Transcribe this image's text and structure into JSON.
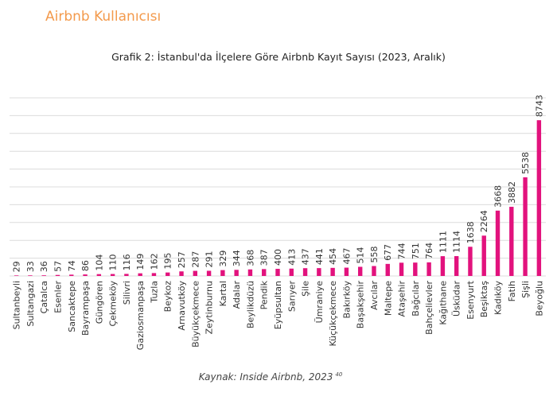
{
  "header": "Airbnb Kullanıcısı",
  "chart_data": {
    "type": "bar",
    "title": "Grafik 2: İstanbul'da İlçelere Göre Airbnb Kayıt Sayısı (2023, Aralık)",
    "categories": [
      "Sultanbeyli",
      "Sultangazi",
      "Çatalca",
      "Esenler",
      "Sancaktepe",
      "Bayrampaşa",
      "Güngören",
      "Çekmeköy",
      "Silivri",
      "Gaziosmanpaşa",
      "Tuzla",
      "Beykoz",
      "Arnavutköy",
      "Büyükçekmece",
      "Zeytinburnu",
      "Kartal",
      "Adalar",
      "Beylikdüzü",
      "Pendik",
      "Eyüpsultan",
      "Sarıyer",
      "Şile",
      "Ümraniye",
      "Küçükçekmece",
      "Bakırköy",
      "Başakşehir",
      "Avcılar",
      "Maltepe",
      "Ataşehir",
      "Bağcılar",
      "Bahçelievler",
      "Kağıthane",
      "Üsküdar",
      "Esenyurt",
      "Beşiktaş",
      "Kadıköy",
      "Fatih",
      "Şişli",
      "Beyoğlu"
    ],
    "values": [
      29,
      33,
      36,
      57,
      74,
      86,
      104,
      110,
      116,
      149,
      162,
      195,
      257,
      287,
      291,
      329,
      344,
      368,
      387,
      400,
      413,
      437,
      441,
      454,
      467,
      514,
      558,
      677,
      744,
      751,
      764,
      1111,
      1114,
      1638,
      2264,
      3668,
      3882,
      5538,
      8743
    ],
    "color": "#e2127d",
    "ylim": [
      0,
      10000
    ],
    "yticks": [
      0,
      1000,
      2000,
      3000,
      4000,
      5000,
      6000,
      7000,
      8000,
      9000,
      10000
    ],
    "grid": true
  },
  "source": {
    "text": "Kaynak: Inside Airbnb, 2023",
    "note": "40"
  }
}
